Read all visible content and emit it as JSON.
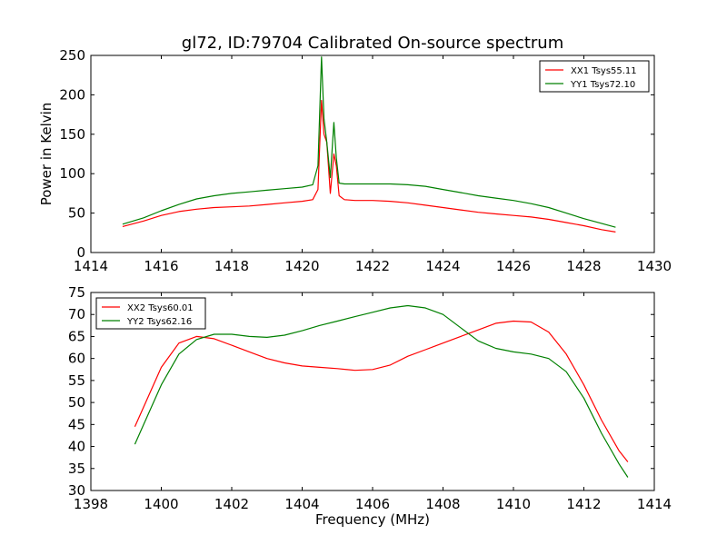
{
  "figure": {
    "title": "gl72, ID:79704 Calibrated On-source spectrum"
  },
  "chart_data": [
    {
      "type": "line",
      "title": "gl72, ID:79704 Calibrated On-source spectrum",
      "xlabel": "",
      "ylabel": "Power in Kelvin",
      "xlim": [
        1414,
        1430
      ],
      "ylim": [
        0,
        250
      ],
      "xticks": [
        1414,
        1416,
        1418,
        1420,
        1422,
        1424,
        1426,
        1428,
        1430
      ],
      "yticks": [
        0,
        50,
        100,
        150,
        200,
        250
      ],
      "legend": "top-right",
      "grid": false,
      "series": [
        {
          "name": "XX1 Tsys55.11",
          "color": "#ff0000",
          "x": [
            1414.9,
            1415.5,
            1416,
            1416.5,
            1417,
            1417.5,
            1418,
            1418.5,
            1419,
            1419.5,
            1420,
            1420.3,
            1420.45,
            1420.55,
            1420.62,
            1420.7,
            1420.8,
            1420.9,
            1420.97,
            1421.05,
            1421.2,
            1421.5,
            1422,
            1422.5,
            1423,
            1423.5,
            1424,
            1424.5,
            1425,
            1425.5,
            1426,
            1426.5,
            1427,
            1427.5,
            1428,
            1428.5,
            1428.9
          ],
          "y": [
            33,
            40,
            47,
            52,
            55,
            57,
            58,
            59,
            61,
            63,
            65,
            67,
            80,
            193,
            150,
            140,
            75,
            125,
            110,
            72,
            67,
            66,
            66,
            65,
            63,
            60,
            57,
            54,
            51,
            49,
            47,
            45,
            42,
            38,
            34,
            29,
            26
          ]
        },
        {
          "name": "YY1 Tsys72.10",
          "color": "#008000",
          "x": [
            1414.9,
            1415.5,
            1416,
            1416.5,
            1417,
            1417.5,
            1418,
            1418.5,
            1419,
            1419.5,
            1420,
            1420.3,
            1420.45,
            1420.55,
            1420.62,
            1420.7,
            1420.8,
            1420.9,
            1420.97,
            1421.05,
            1421.2,
            1421.5,
            1422,
            1422.5,
            1423,
            1423.5,
            1424,
            1424.5,
            1425,
            1425.5,
            1426,
            1426.5,
            1427,
            1427.5,
            1428,
            1428.5,
            1428.9
          ],
          "y": [
            36,
            44,
            53,
            61,
            68,
            72,
            75,
            77,
            79,
            81,
            83,
            86,
            110,
            248,
            170,
            140,
            95,
            165,
            120,
            88,
            87,
            87,
            87,
            87,
            86,
            84,
            80,
            76,
            72,
            69,
            66,
            62,
            57,
            50,
            43,
            37,
            32
          ]
        }
      ]
    },
    {
      "type": "line",
      "title": "",
      "xlabel": "Frequency (MHz)",
      "ylabel": "",
      "xlim": [
        1398,
        1414
      ],
      "ylim": [
        30,
        75
      ],
      "xticks": [
        1398,
        1400,
        1402,
        1404,
        1406,
        1408,
        1410,
        1412,
        1414
      ],
      "yticks": [
        30,
        35,
        40,
        45,
        50,
        55,
        60,
        65,
        70,
        75
      ],
      "legend": "top-left",
      "grid": false,
      "series": [
        {
          "name": "XX2 Tsys60.01",
          "color": "#ff0000",
          "x": [
            1399.25,
            1399.5,
            1400,
            1400.5,
            1401,
            1401.5,
            1402,
            1402.5,
            1403,
            1403.5,
            1404,
            1404.5,
            1405,
            1405.5,
            1406,
            1406.5,
            1407,
            1407.5,
            1408,
            1408.5,
            1409,
            1409.5,
            1410,
            1410.5,
            1411,
            1411.5,
            1412,
            1412.5,
            1413,
            1413.25
          ],
          "y": [
            44.5,
            49,
            58,
            63.5,
            65,
            64.5,
            63,
            61.5,
            60,
            59,
            58.3,
            58,
            57.7,
            57.3,
            57.5,
            58.5,
            60.5,
            62,
            63.5,
            65,
            66.5,
            68,
            68.5,
            68.3,
            66,
            61,
            54,
            46,
            39,
            36.5
          ]
        },
        {
          "name": "YY2 Tsys62.16",
          "color": "#008000",
          "x": [
            1399.25,
            1399.5,
            1400,
            1400.5,
            1401,
            1401.5,
            1402,
            1402.5,
            1403,
            1403.5,
            1404,
            1404.5,
            1405,
            1405.5,
            1406,
            1406.5,
            1407,
            1407.5,
            1408,
            1408.5,
            1409,
            1409.5,
            1410,
            1410.5,
            1411,
            1411.5,
            1412,
            1412.5,
            1413,
            1413.25
          ],
          "y": [
            40.5,
            45,
            54,
            61,
            64.3,
            65.5,
            65.5,
            65,
            64.8,
            65.3,
            66.3,
            67.5,
            68.5,
            69.5,
            70.5,
            71.5,
            72,
            71.5,
            70,
            67,
            64,
            62.3,
            61.5,
            61,
            60,
            57,
            51,
            43,
            36,
            33
          ]
        }
      ]
    }
  ]
}
